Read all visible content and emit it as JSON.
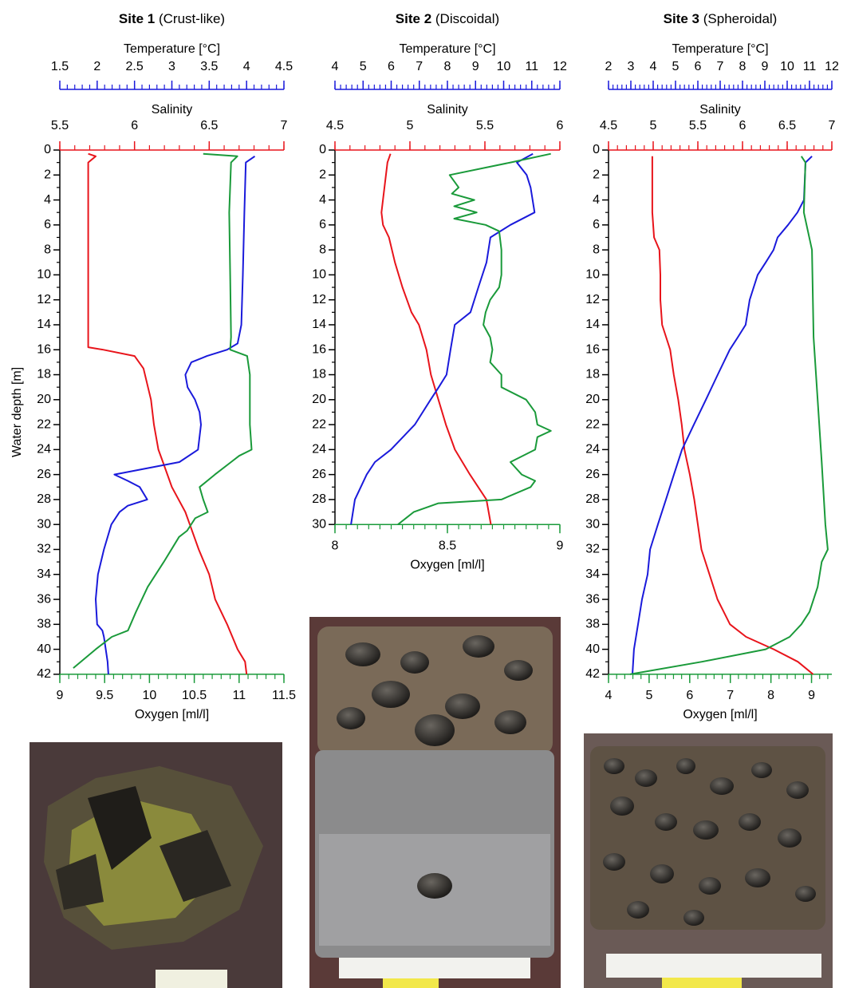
{
  "chart_data": [
    {
      "type": "line",
      "title": "Site 1",
      "subtitle": "(Crust-like)",
      "y_label": "Water depth [m]",
      "ylim": [
        0,
        42
      ],
      "yticks": [
        0,
        2,
        4,
        6,
        8,
        10,
        12,
        14,
        16,
        18,
        20,
        22,
        24,
        26,
        28,
        30,
        32,
        34,
        36,
        38,
        40,
        42
      ],
      "y_minor": 2,
      "invert_y": true,
      "axes": [
        {
          "label": "Temperature [°C]",
          "color": "#1a1adb",
          "position": "top-outer",
          "xlim": [
            1.5,
            4.5
          ],
          "xticks": [
            1.5,
            2,
            2.5,
            3,
            3.5,
            4,
            4.5
          ],
          "minor": 5
        },
        {
          "label": "Salinity",
          "color": "#e8141b",
          "position": "top",
          "xlim": [
            5.5,
            7
          ],
          "xticks": [
            5.5,
            6,
            6.5,
            7
          ],
          "minor": 5
        },
        {
          "label": "Oxygen [ml/l]",
          "color": "#1a9a3a",
          "position": "bottom",
          "xlim": [
            9,
            11.5
          ],
          "xticks": [
            9,
            9.5,
            10,
            10.5,
            11,
            11.5
          ],
          "minor": 5
        }
      ],
      "series": [
        {
          "axis": 1,
          "depth": [
            0.3,
            0.5,
            1,
            15.8,
            16,
            16.5,
            17.5,
            20,
            22,
            24,
            25,
            27,
            29,
            30,
            32,
            34,
            36,
            38,
            40,
            41,
            42
          ],
          "values": [
            5.69,
            5.74,
            5.69,
            5.69,
            5.79,
            6.0,
            6.06,
            6.11,
            6.13,
            6.16,
            6.19,
            6.25,
            6.34,
            6.37,
            6.43,
            6.5,
            6.54,
            6.62,
            6.69,
            6.74,
            6.75
          ]
        },
        {
          "axis": 0,
          "depth": [
            0.5,
            1,
            5,
            10,
            14,
            15.5,
            16,
            16.5,
            17,
            18,
            19,
            20,
            21,
            22,
            24,
            25,
            26,
            26.5,
            27,
            28,
            28.5,
            29,
            30,
            32,
            34,
            36,
            38,
            38.5,
            39,
            41,
            42
          ],
          "values": [
            4.11,
            3.99,
            3.97,
            3.95,
            3.93,
            3.88,
            3.74,
            3.47,
            3.26,
            3.18,
            3.21,
            3.31,
            3.37,
            3.39,
            3.35,
            3.1,
            2.23,
            2.41,
            2.57,
            2.67,
            2.41,
            2.3,
            2.19,
            2.09,
            2.01,
            1.98,
            2.0,
            2.07,
            2.09,
            2.14,
            2.15
          ]
        },
        {
          "axis": 2,
          "depth": [
            0.3,
            0.5,
            1,
            5,
            10,
            15,
            16,
            16.5,
            18,
            22,
            24,
            24.5,
            25,
            26,
            27,
            28,
            29,
            29.5,
            30.5,
            31,
            33,
            35,
            37,
            38.5,
            39,
            40,
            41.5
          ],
          "values": [
            10.6,
            10.98,
            10.91,
            10.89,
            10.9,
            10.91,
            10.9,
            11.09,
            11.12,
            11.12,
            11.14,
            11.0,
            10.91,
            10.73,
            10.56,
            10.6,
            10.65,
            10.51,
            10.42,
            10.33,
            10.16,
            9.98,
            9.85,
            9.76,
            9.58,
            9.4,
            9.15
          ]
        }
      ]
    },
    {
      "type": "line",
      "title": "Site 2",
      "subtitle": "(Discoidal)",
      "ylim": [
        0,
        30
      ],
      "yticks": [
        0,
        2,
        4,
        6,
        8,
        10,
        12,
        14,
        16,
        18,
        20,
        22,
        24,
        26,
        28,
        30
      ],
      "y_minor": 2,
      "invert_y": true,
      "axes": [
        {
          "label": "Temperature [°C]",
          "color": "#1a1adb",
          "position": "top-outer",
          "xlim": [
            4,
            12
          ],
          "xticks": [
            4,
            5,
            6,
            7,
            8,
            9,
            10,
            11,
            12
          ],
          "minor": 5
        },
        {
          "label": "Salinity",
          "color": "#e8141b",
          "position": "top",
          "xlim": [
            4.5,
            6
          ],
          "xticks": [
            4.5,
            5,
            5.5,
            6
          ],
          "minor": 5
        },
        {
          "label": "Oxygen [ml/l]",
          "color": "#1a9a3a",
          "position": "bottom",
          "xlim": [
            8,
            9
          ],
          "xticks": [
            8,
            8.5,
            9
          ],
          "minor": 10
        }
      ],
      "series": [
        {
          "axis": 1,
          "depth": [
            0.3,
            1,
            5,
            6,
            7,
            9,
            11,
            13,
            14,
            16,
            18,
            20,
            22,
            24,
            26,
            28,
            30
          ],
          "values": [
            4.87,
            4.85,
            4.81,
            4.82,
            4.86,
            4.9,
            4.95,
            5.01,
            5.06,
            5.11,
            5.14,
            5.19,
            5.24,
            5.3,
            5.4,
            5.51,
            5.54
          ]
        },
        {
          "axis": 0,
          "depth": [
            0.3,
            1,
            2,
            3,
            5,
            6,
            7,
            9,
            11,
            13,
            14,
            16,
            18,
            19,
            20,
            22,
            24,
            25,
            26,
            28,
            30
          ],
          "values": [
            11.04,
            10.47,
            10.82,
            10.96,
            11.1,
            10.24,
            9.53,
            9.39,
            9.1,
            8.82,
            8.26,
            8.11,
            7.97,
            7.69,
            7.4,
            6.84,
            5.99,
            5.42,
            5.13,
            4.71,
            4.57
          ]
        },
        {
          "axis": 2,
          "depth": [
            0.3,
            1,
            2,
            3,
            3.5,
            4,
            4.5,
            5,
            5.5,
            6,
            6.5,
            8,
            9,
            10,
            11,
            12,
            13,
            14,
            15,
            16,
            17,
            18,
            19,
            20,
            21,
            22,
            22.5,
            23,
            24,
            25,
            26,
            26.5,
            27,
            28,
            28.3,
            29,
            30
          ],
          "values": [
            8.96,
            8.78,
            8.51,
            8.55,
            8.52,
            8.62,
            8.53,
            8.63,
            8.53,
            8.67,
            8.73,
            8.74,
            8.74,
            8.74,
            8.73,
            8.69,
            8.67,
            8.66,
            8.69,
            8.7,
            8.69,
            8.74,
            8.74,
            8.85,
            8.89,
            8.9,
            8.96,
            8.9,
            8.89,
            8.78,
            8.83,
            8.89,
            8.87,
            8.74,
            8.46,
            8.35,
            8.28
          ]
        }
      ]
    },
    {
      "type": "line",
      "title": "Site 3",
      "subtitle": "(Spheroidal)",
      "ylim": [
        0,
        42
      ],
      "yticks": [
        0,
        2,
        4,
        6,
        8,
        10,
        12,
        14,
        16,
        18,
        20,
        22,
        24,
        26,
        28,
        30,
        32,
        34,
        36,
        38,
        40,
        42
      ],
      "y_minor": 2,
      "invert_y": true,
      "axes": [
        {
          "label": "Temperature [°C]",
          "color": "#1a1adb",
          "position": "top-outer",
          "xlim": [
            2,
            12
          ],
          "xticks": [
            2,
            3,
            4,
            5,
            6,
            7,
            8,
            9,
            10,
            11,
            12
          ],
          "minor": 5
        },
        {
          "label": "Salinity",
          "color": "#e8141b",
          "position": "top",
          "xlim": [
            4.5,
            7
          ],
          "xticks": [
            4.5,
            5,
            5.5,
            6,
            6.5,
            7
          ],
          "minor": 5
        },
        {
          "label": "Oxygen [ml/l]",
          "color": "#1a9a3a",
          "position": "bottom",
          "xlim": [
            4,
            9.5
          ],
          "xticks": [
            4,
            5,
            6,
            7,
            8,
            9
          ],
          "minor": 5
        }
      ],
      "series": [
        {
          "axis": 1,
          "depth": [
            0.5,
            5,
            7,
            8,
            10,
            12,
            14,
            16,
            18,
            20,
            22,
            24,
            26,
            28,
            30,
            32,
            34,
            36,
            38,
            39,
            40,
            41,
            42
          ],
          "values": [
            4.99,
            4.99,
            5.01,
            5.07,
            5.08,
            5.08,
            5.1,
            5.19,
            5.23,
            5.28,
            5.32,
            5.35,
            5.41,
            5.46,
            5.5,
            5.54,
            5.63,
            5.72,
            5.86,
            6.04,
            6.35,
            6.62,
            6.79
          ]
        },
        {
          "axis": 0,
          "depth": [
            0.5,
            1,
            4,
            5,
            6,
            7,
            8,
            9,
            10,
            11,
            12,
            14,
            15,
            16,
            18,
            20,
            22,
            24,
            26,
            28,
            30,
            32,
            34,
            36,
            38,
            40,
            42
          ],
          "values": [
            11.11,
            10.82,
            10.75,
            10.46,
            10.04,
            9.57,
            9.39,
            9.04,
            8.68,
            8.5,
            8.32,
            8.14,
            7.79,
            7.43,
            6.89,
            6.36,
            5.82,
            5.29,
            4.93,
            4.57,
            4.21,
            3.86,
            3.75,
            3.5,
            3.32,
            3.14,
            3.07
          ]
        },
        {
          "axis": 2,
          "depth": [
            0.5,
            1,
            5,
            8,
            15,
            20,
            25,
            30,
            32,
            33,
            35,
            37,
            38,
            39,
            40,
            41,
            42
          ],
          "values": [
            8.75,
            8.85,
            8.81,
            9.01,
            9.05,
            9.15,
            9.25,
            9.34,
            9.4,
            9.25,
            9.15,
            8.95,
            8.75,
            8.46,
            7.87,
            6.3,
            4.53
          ]
        }
      ]
    }
  ]
}
